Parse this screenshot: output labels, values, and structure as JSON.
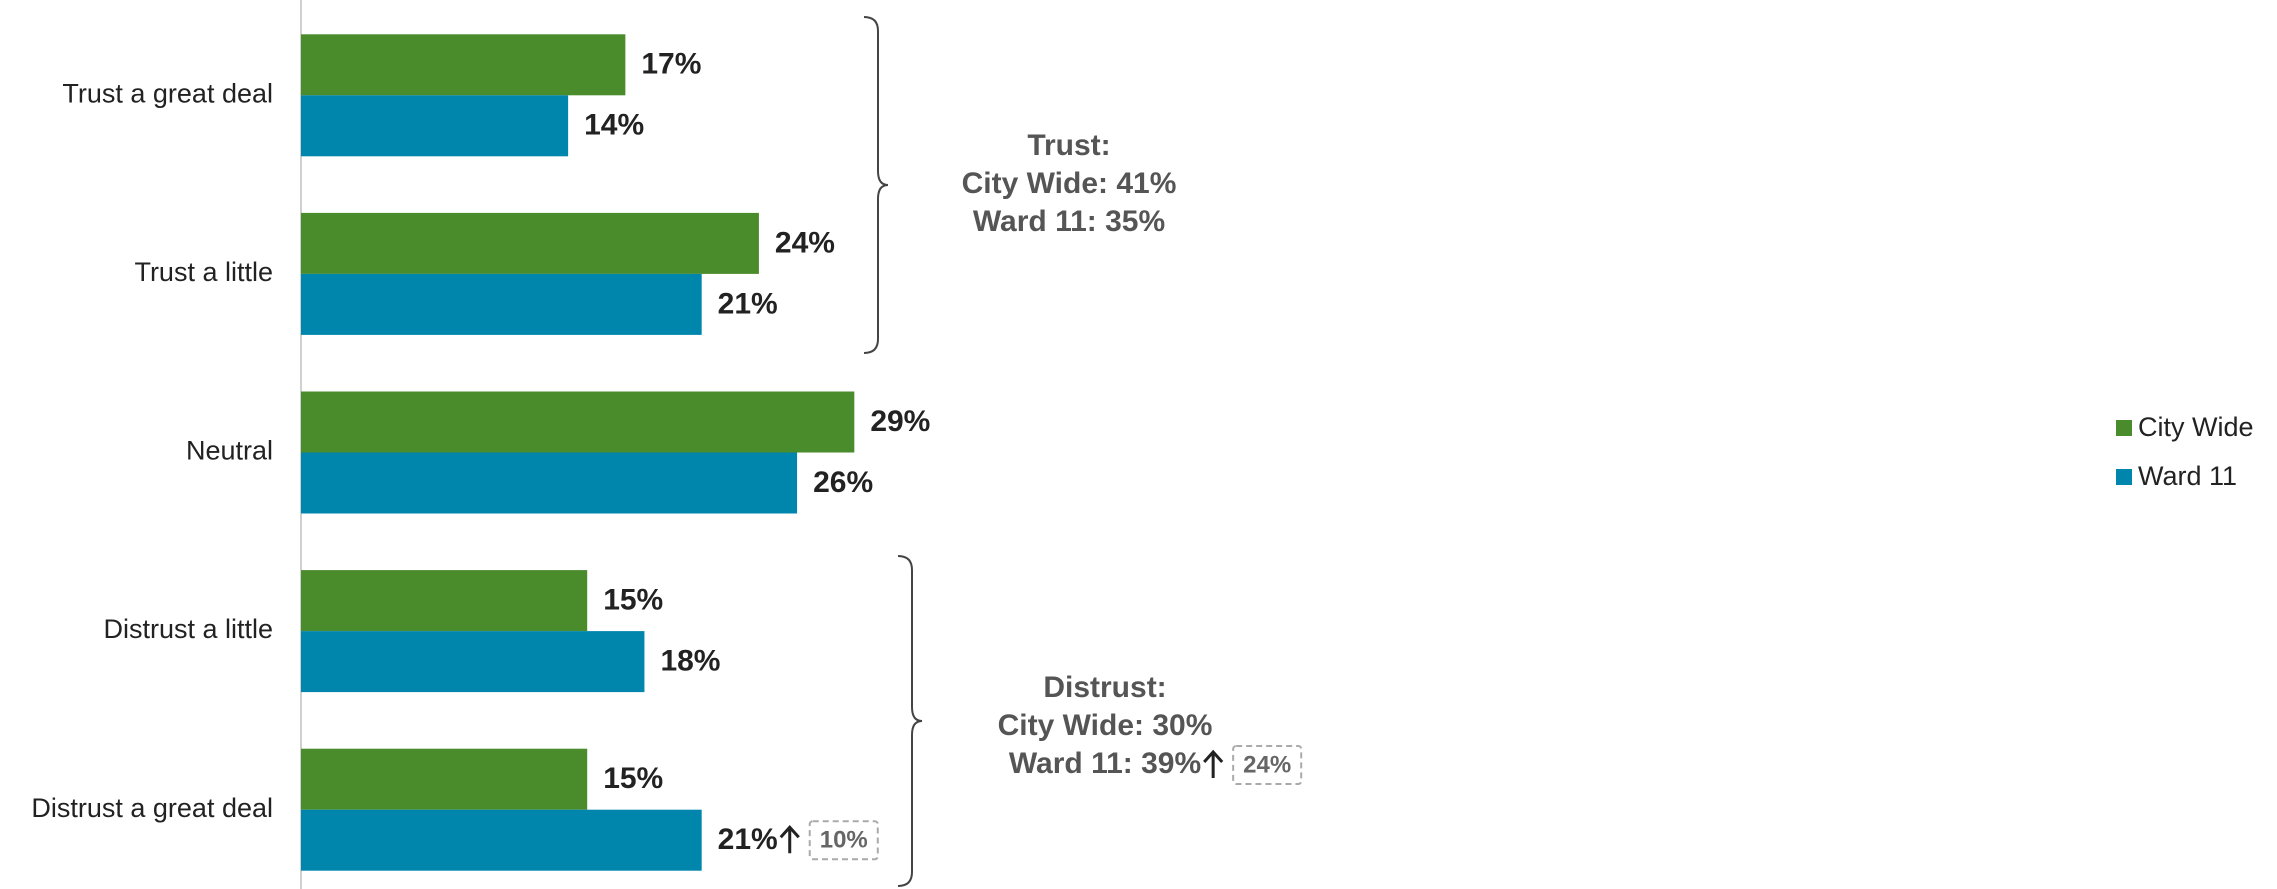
{
  "chart_data": {
    "type": "bar",
    "orientation": "horizontal",
    "categories": [
      "Trust a great deal",
      "Trust a little",
      "Neutral",
      "Distrust a little",
      "Distrust a great deal"
    ],
    "series": [
      {
        "name": "City Wide",
        "color": "#4a8b2c",
        "values": [
          17,
          24,
          29,
          15,
          15
        ],
        "value_labels": [
          "17%",
          "24%",
          "29%",
          "15%",
          "15%"
        ]
      },
      {
        "name": "Ward 11",
        "color": "#0086ad",
        "values": [
          14,
          21,
          26,
          18,
          21
        ],
        "value_labels": [
          "14%",
          "21%",
          "26%",
          "18%",
          "21%"
        ],
        "flags": [
          null,
          null,
          null,
          null,
          "10%"
        ]
      }
    ],
    "annotations": [
      {
        "title": "Trust:",
        "lines": [
          "City Wide: 41%",
          "Ward 11: 35%"
        ],
        "flag": null
      },
      {
        "title": "Distrust:",
        "lines": [
          "City Wide: 30%",
          "Ward 11: 39%"
        ],
        "flag": "24%"
      }
    ],
    "legend": "right"
  }
}
